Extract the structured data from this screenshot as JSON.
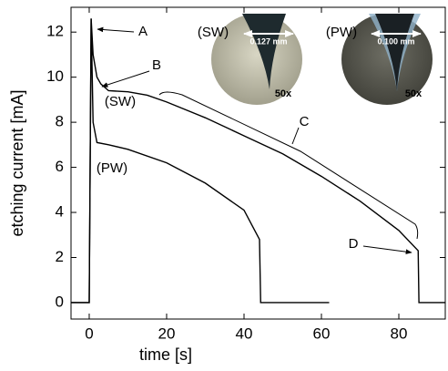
{
  "chart_data": {
    "type": "line",
    "xlabel": "time [s]",
    "ylabel": "etching current [mA]",
    "xlim": [
      -4.7,
      92
    ],
    "ylim": [
      -0.73,
      13.1
    ],
    "xticks": [
      0,
      20,
      40,
      60,
      80
    ],
    "yticks": [
      0,
      2,
      4,
      6,
      8,
      10,
      12
    ],
    "series": [
      {
        "name": "(SW)",
        "color": "#000000",
        "x": [
          -5,
          0,
          0.5,
          1,
          2,
          3,
          5,
          10,
          15,
          20,
          30,
          40,
          50,
          60,
          70,
          80,
          85,
          85.2,
          92
        ],
        "values": [
          0,
          0,
          12.6,
          11,
          10,
          9.7,
          9.4,
          9.35,
          9.2,
          8.9,
          8.2,
          7.4,
          6.6,
          5.6,
          4.5,
          3.2,
          2.3,
          0,
          0
        ]
      },
      {
        "name": "(PW)",
        "color": "#000000",
        "x": [
          -5,
          0,
          0.5,
          1,
          2,
          5,
          10,
          20,
          30,
          40,
          44,
          44.3,
          62
        ],
        "values": [
          0,
          0,
          12.6,
          8,
          7.1,
          7.0,
          6.8,
          6.2,
          5.3,
          4.1,
          2.8,
          0,
          0
        ]
      }
    ],
    "annotations": [
      "A",
      "B",
      "C",
      "D"
    ],
    "insets": [
      {
        "label": "(SW)",
        "scale": "0.127 mm",
        "magnification": "50x"
      },
      {
        "label": "(PW)",
        "scale": "0.100 mm",
        "magnification": "50x"
      }
    ]
  }
}
